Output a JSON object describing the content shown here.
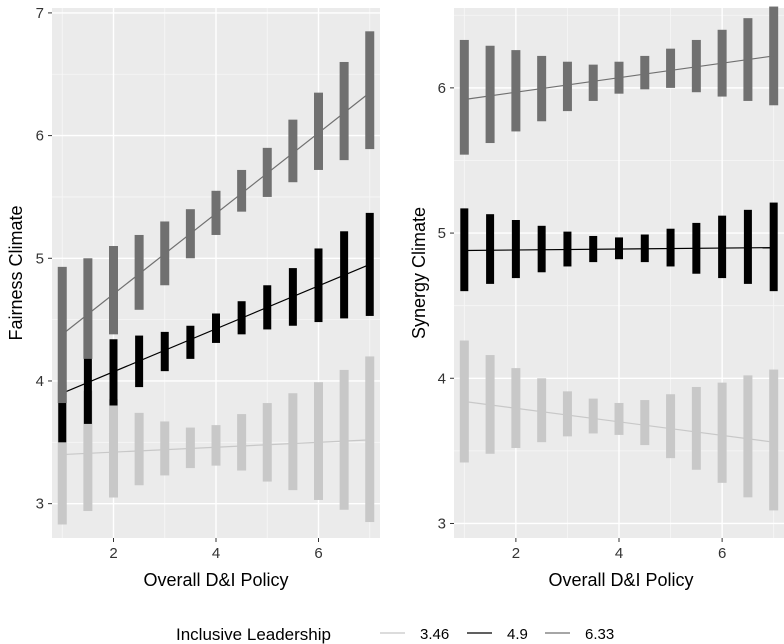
{
  "chart_data": [
    {
      "type": "line",
      "xlabel": "Overall D&I Policy",
      "ylabel": "Fairness Climate",
      "xlim": [
        0.8,
        7.2
      ],
      "ylim": [
        2.72,
        7.04
      ],
      "xticks": [
        2,
        4,
        6
      ],
      "yticks": [
        3,
        4,
        5,
        6,
        7
      ],
      "grid": true,
      "series": [
        {
          "name": "3.46",
          "color": "#c8c8c8",
          "x": [
            1,
            1.5,
            2,
            2.5,
            3,
            3.5,
            4,
            4.5,
            5,
            5.5,
            6,
            6.5,
            7
          ],
          "line": [
            3.4,
            3.52
          ],
          "ranges": [
            [
              2.83,
              3.97
            ],
            [
              2.94,
              3.92
            ],
            [
              3.05,
              3.85
            ],
            [
              3.15,
              3.74
            ],
            [
              3.23,
              3.67
            ],
            [
              3.29,
              3.62
            ],
            [
              3.31,
              3.64
            ],
            [
              3.27,
              3.73
            ],
            [
              3.18,
              3.82
            ],
            [
              3.11,
              3.9
            ],
            [
              3.03,
              3.99
            ],
            [
              2.95,
              4.09
            ],
            [
              2.85,
              4.2
            ]
          ]
        },
        {
          "name": "4.9",
          "color": "#000000",
          "x": [
            1,
            1.5,
            2,
            2.5,
            3,
            3.5,
            4,
            4.5,
            5,
            5.5,
            6,
            6.5,
            7
          ],
          "line": [
            3.9,
            4.95
          ],
          "ranges": [
            [
              3.5,
              4.3
            ],
            [
              3.65,
              4.32
            ],
            [
              3.8,
              4.34
            ],
            [
              3.95,
              4.37
            ],
            [
              4.08,
              4.4
            ],
            [
              4.18,
              4.45
            ],
            [
              4.31,
              4.55
            ],
            [
              4.38,
              4.65
            ],
            [
              4.42,
              4.78
            ],
            [
              4.45,
              4.92
            ],
            [
              4.48,
              5.08
            ],
            [
              4.51,
              5.22
            ],
            [
              4.53,
              5.37
            ]
          ]
        },
        {
          "name": "6.33",
          "color": "#707070",
          "x": [
            1,
            1.5,
            2,
            2.5,
            3,
            3.5,
            4,
            4.5,
            5,
            5.5,
            6,
            6.5,
            7
          ],
          "line": [
            4.38,
            6.35
          ],
          "ranges": [
            [
              3.82,
              4.93
            ],
            [
              4.18,
              5.0
            ],
            [
              4.38,
              5.1
            ],
            [
              4.58,
              5.19
            ],
            [
              4.78,
              5.3
            ],
            [
              5.0,
              5.4
            ],
            [
              5.19,
              5.55
            ],
            [
              5.38,
              5.72
            ],
            [
              5.5,
              5.9
            ],
            [
              5.62,
              6.13
            ],
            [
              5.72,
              6.35
            ],
            [
              5.8,
              6.6
            ],
            [
              5.89,
              6.85
            ]
          ]
        }
      ]
    },
    {
      "type": "line",
      "xlabel": "Overall D&I Policy",
      "ylabel": "Synergy Climate",
      "xlim": [
        0.8,
        7.2
      ],
      "ylim": [
        2.9,
        6.55
      ],
      "xticks": [
        2,
        4,
        6
      ],
      "yticks": [
        3,
        4,
        5,
        6
      ],
      "grid": true,
      "series": [
        {
          "name": "3.46",
          "color": "#c8c8c8",
          "x": [
            1,
            1.5,
            2,
            2.5,
            3,
            3.5,
            4,
            4.5,
            5,
            5.5,
            6,
            6.5,
            7
          ],
          "line": [
            3.84,
            3.56
          ],
          "ranges": [
            [
              3.42,
              4.26
            ],
            [
              3.48,
              4.16
            ],
            [
              3.52,
              4.07
            ],
            [
              3.56,
              4.0
            ],
            [
              3.6,
              3.91
            ],
            [
              3.62,
              3.86
            ],
            [
              3.61,
              3.83
            ],
            [
              3.54,
              3.85
            ],
            [
              3.45,
              3.89
            ],
            [
              3.37,
              3.94
            ],
            [
              3.28,
              3.97
            ],
            [
              3.18,
              4.02
            ],
            [
              3.09,
              4.06
            ]
          ]
        },
        {
          "name": "4.9",
          "color": "#000000",
          "x": [
            1,
            1.5,
            2,
            2.5,
            3,
            3.5,
            4,
            4.5,
            5,
            5.5,
            6,
            6.5,
            7
          ],
          "line": [
            4.88,
            4.9
          ],
          "ranges": [
            [
              4.6,
              5.17
            ],
            [
              4.65,
              5.13
            ],
            [
              4.69,
              5.09
            ],
            [
              4.73,
              5.05
            ],
            [
              4.77,
              5.01
            ],
            [
              4.8,
              4.98
            ],
            [
              4.82,
              4.97
            ],
            [
              4.8,
              4.99
            ],
            [
              4.77,
              5.03
            ],
            [
              4.72,
              5.07
            ],
            [
              4.69,
              5.12
            ],
            [
              4.65,
              5.16
            ],
            [
              4.6,
              5.21
            ]
          ]
        },
        {
          "name": "6.33",
          "color": "#707070",
          "x": [
            1,
            1.5,
            2,
            2.5,
            3,
            3.5,
            4,
            4.5,
            5,
            5.5,
            6,
            6.5,
            7
          ],
          "line": [
            5.92,
            6.22
          ],
          "ranges": [
            [
              5.54,
              6.33
            ],
            [
              5.62,
              6.29
            ],
            [
              5.7,
              6.26
            ],
            [
              5.77,
              6.22
            ],
            [
              5.84,
              6.18
            ],
            [
              5.91,
              6.16
            ],
            [
              5.96,
              6.18
            ],
            [
              5.99,
              6.22
            ],
            [
              6.0,
              6.27
            ],
            [
              5.97,
              6.33
            ],
            [
              5.94,
              6.4
            ],
            [
              5.91,
              6.48
            ],
            [
              5.88,
              6.56
            ]
          ]
        }
      ]
    }
  ],
  "legend": {
    "title": "Inclusive Leadership",
    "items": [
      {
        "label": "3.46",
        "color": "#c8c8c8"
      },
      {
        "label": "4.9",
        "color": "#000000"
      },
      {
        "label": "6.33",
        "color": "#707070"
      }
    ]
  }
}
